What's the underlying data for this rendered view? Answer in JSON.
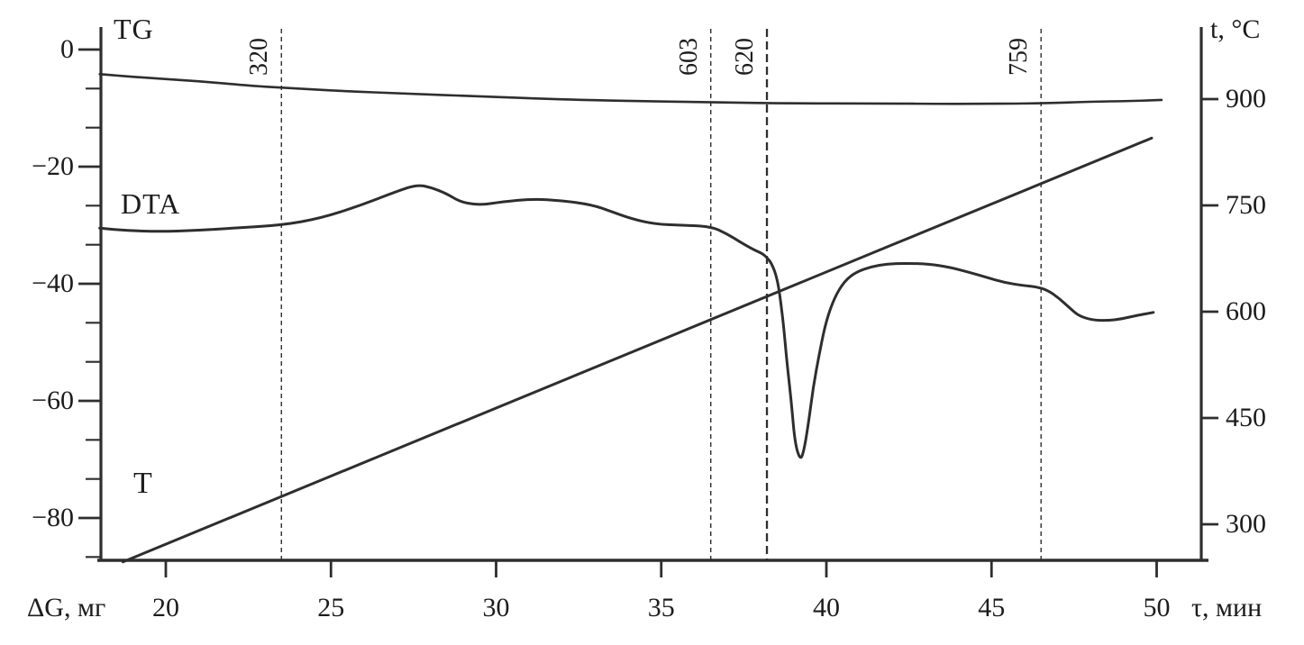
{
  "figure": {
    "curves": {
      "tg_label": "TG",
      "dta_label": "DTA",
      "t_label": "T"
    },
    "axes": {
      "left_unit": "ΔG, мг",
      "bottom_unit": "τ, мин",
      "right_unit": "t, °C"
    },
    "ink_color": "#2e2e2e"
  },
  "chart_data": {
    "type": "line",
    "title": "",
    "x_axis": {
      "label": "τ, мин",
      "range": [
        18.0,
        51.4
      ],
      "ticks": [
        20,
        25,
        30,
        35,
        40,
        45,
        50
      ]
    },
    "y_axis_left": {
      "label": "ΔG, мг",
      "range": [
        -87,
        4
      ],
      "ticks": [
        0,
        -20,
        -40,
        -60,
        -80
      ],
      "minor_ticks_between_majors": 2
    },
    "y_axis_right": {
      "label": "t, °C",
      "range": [
        250,
        1000
      ],
      "ticks": [
        900,
        750,
        600,
        450,
        300
      ]
    },
    "grid": false,
    "legend": "inline curve labels",
    "event_lines": [
      {
        "label": "320",
        "temperature_c": 320,
        "tau": 23.5,
        "emphasis": false
      },
      {
        "label": "603",
        "temperature_c": 603,
        "tau": 36.5,
        "emphasis": false
      },
      {
        "label": "620",
        "temperature_c": 620,
        "tau": 38.2,
        "emphasis": true
      },
      {
        "label": "759",
        "temperature_c": 759,
        "tau": 46.5,
        "emphasis": false
      }
    ],
    "series": [
      {
        "name": "TG",
        "axis": "left",
        "points": [
          [
            18.0,
            -4.2
          ],
          [
            19.35,
            -4.8
          ],
          [
            21.0,
            -5.4
          ],
          [
            22.6,
            -6.2
          ],
          [
            23.5,
            -6.5
          ],
          [
            25.35,
            -7.1
          ],
          [
            27.25,
            -7.5
          ],
          [
            29.45,
            -8.0
          ],
          [
            31.9,
            -8.5
          ],
          [
            34.1,
            -8.8
          ],
          [
            36.5,
            -9.0
          ],
          [
            38.95,
            -9.2
          ],
          [
            41.4,
            -9.2
          ],
          [
            43.9,
            -9.3
          ],
          [
            46.55,
            -9.2
          ],
          [
            48.0,
            -8.9
          ],
          [
            49.2,
            -8.8
          ],
          [
            50.15,
            -8.6
          ]
        ]
      },
      {
        "name": "DTA",
        "axis": "left",
        "points": [
          [
            18.0,
            -30.5
          ],
          [
            18.8,
            -30.9
          ],
          [
            19.8,
            -31.1
          ],
          [
            20.9,
            -30.9
          ],
          [
            22.0,
            -30.5
          ],
          [
            23.5,
            -30.0
          ],
          [
            24.7,
            -28.8
          ],
          [
            25.9,
            -26.6
          ],
          [
            27.0,
            -24.2
          ],
          [
            27.6,
            -23.1
          ],
          [
            28.0,
            -23.5
          ],
          [
            28.5,
            -24.6
          ],
          [
            28.9,
            -26.0
          ],
          [
            29.5,
            -26.6
          ],
          [
            30.2,
            -26.0
          ],
          [
            31.1,
            -25.5
          ],
          [
            32.0,
            -25.8
          ],
          [
            32.9,
            -26.5
          ],
          [
            33.5,
            -27.7
          ],
          [
            34.1,
            -28.9
          ],
          [
            34.8,
            -29.8
          ],
          [
            35.6,
            -30.0
          ],
          [
            36.5,
            -30.2
          ],
          [
            37.0,
            -31.5
          ],
          [
            37.4,
            -32.9
          ],
          [
            37.8,
            -34.2
          ],
          [
            38.05,
            -34.8
          ],
          [
            38.2,
            -35.5
          ],
          [
            38.35,
            -36.6
          ],
          [
            38.5,
            -38.9
          ],
          [
            38.6,
            -42.3
          ],
          [
            38.7,
            -46.9
          ],
          [
            38.8,
            -53.1
          ],
          [
            38.95,
            -60.8
          ],
          [
            39.05,
            -67.2
          ],
          [
            39.2,
            -70.0
          ],
          [
            39.3,
            -69.1
          ],
          [
            39.45,
            -64.2
          ],
          [
            39.6,
            -57.7
          ],
          [
            39.8,
            -51.5
          ],
          [
            40.0,
            -46.2
          ],
          [
            40.25,
            -42.3
          ],
          [
            40.55,
            -39.5
          ],
          [
            40.9,
            -38.0
          ],
          [
            41.35,
            -37.1
          ],
          [
            41.85,
            -36.6
          ],
          [
            42.4,
            -36.5
          ],
          [
            43.1,
            -36.6
          ],
          [
            43.75,
            -37.2
          ],
          [
            44.3,
            -38.0
          ],
          [
            44.85,
            -38.9
          ],
          [
            45.4,
            -39.8
          ],
          [
            45.95,
            -40.3
          ],
          [
            46.35,
            -40.5
          ],
          [
            46.7,
            -41.1
          ],
          [
            47.05,
            -42.5
          ],
          [
            47.4,
            -44.3
          ],
          [
            47.65,
            -45.5
          ],
          [
            48.05,
            -46.2
          ],
          [
            48.5,
            -46.3
          ],
          [
            48.95,
            -46.0
          ],
          [
            49.4,
            -45.4
          ],
          [
            49.9,
            -44.9
          ]
        ]
      },
      {
        "name": "T",
        "axis": "right",
        "points": [
          [
            18.7,
            247
          ],
          [
            34.0,
            541
          ],
          [
            49.85,
            845
          ]
        ]
      }
    ]
  }
}
